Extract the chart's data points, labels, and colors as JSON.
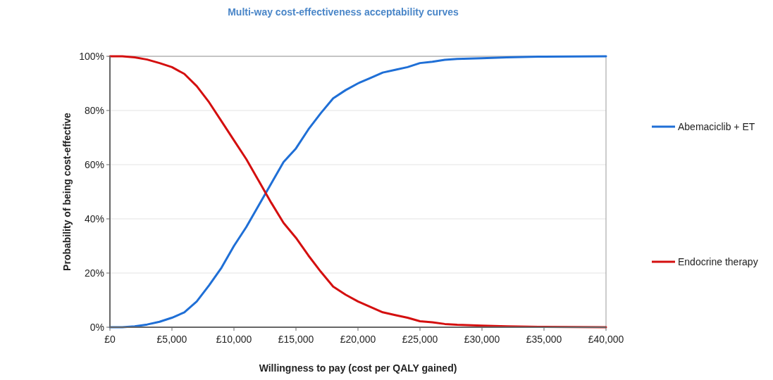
{
  "chart_data": {
    "type": "line",
    "title": "Multi-way  cost-effectiveness acceptability curves",
    "xlabel": "Willingness to pay (cost per QALY gained)",
    "ylabel": "Probability of being cost-effective",
    "x": [
      0,
      1000,
      2000,
      3000,
      4000,
      5000,
      6000,
      7000,
      8000,
      9000,
      10000,
      11000,
      12000,
      13000,
      14000,
      15000,
      16000,
      17000,
      18000,
      19000,
      20000,
      21000,
      22000,
      23000,
      24000,
      25000,
      26000,
      27000,
      28000,
      30000,
      32000,
      35000,
      40000
    ],
    "series": [
      {
        "name": "Abemaciclib + ET",
        "color": "#1f6fd6",
        "values": [
          0,
          0,
          0.3,
          1,
          2,
          3.5,
          5.5,
          9.5,
          15.5,
          22,
          30,
          37,
          45,
          53,
          61,
          66,
          73,
          79,
          84.5,
          87.5,
          90,
          92,
          94,
          95,
          96,
          97.5,
          98,
          98.7,
          99,
          99.3,
          99.6,
          99.9,
          100
        ]
      },
      {
        "name": "Endocrine therapy",
        "color": "#d40f0f",
        "values": [
          100,
          100,
          99.6,
          98.8,
          97.5,
          96,
          93.5,
          89,
          83,
          76,
          69,
          62,
          54,
          46,
          38.5,
          33,
          26.5,
          20.5,
          15,
          12,
          9.5,
          7.5,
          5.5,
          4.5,
          3.5,
          2.2,
          1.8,
          1.2,
          0.9,
          0.6,
          0.3,
          0.1,
          0
        ]
      }
    ],
    "xlim": [
      0,
      40000
    ],
    "xticks": [
      {
        "value": 0,
        "label": "£0"
      },
      {
        "value": 5000,
        "label": "£5,000"
      },
      {
        "value": 10000,
        "label": "£10,000"
      },
      {
        "value": 15000,
        "label": "£15,000"
      },
      {
        "value": 20000,
        "label": "£20,000"
      },
      {
        "value": 25000,
        "label": "£25,000"
      },
      {
        "value": 30000,
        "label": "£30,000"
      },
      {
        "value": 35000,
        "label": "£35,000"
      },
      {
        "value": 40000,
        "label": "£40,000"
      }
    ],
    "ylim": [
      0,
      100
    ],
    "yticks": [
      {
        "value": 0,
        "label": "0%"
      },
      {
        "value": 20,
        "label": "20%"
      },
      {
        "value": 40,
        "label": "40%"
      },
      {
        "value": 60,
        "label": "60%"
      },
      {
        "value": 80,
        "label": "80%"
      },
      {
        "value": 100,
        "label": "100%"
      }
    ],
    "grid": "y",
    "legend": "right",
    "marker": "none",
    "line_style": "solid"
  }
}
